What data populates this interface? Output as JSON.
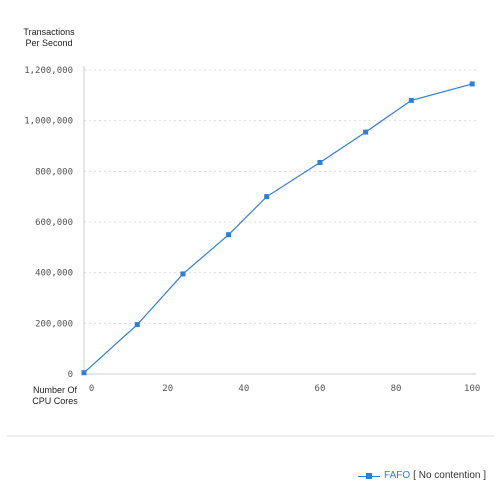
{
  "colors": {
    "series": "#2f7fd7",
    "grid": "#dddddd",
    "axis": "#cccccc",
    "tick_text": "#555555"
  },
  "chart_data": {
    "type": "line",
    "ylabel_line1": "Transactions",
    "ylabel_line2": "Per Second",
    "xlabel_line1": "Number Of",
    "xlabel_line2": "CPU Cores",
    "xlim": [
      -2,
      101
    ],
    "ylim": [
      0,
      1200000
    ],
    "xticks": [
      0,
      20,
      40,
      60,
      80,
      100
    ],
    "xtick_labels": [
      "0",
      "20",
      "40",
      "60",
      "80",
      "100"
    ],
    "yticks": [
      0,
      200000,
      400000,
      600000,
      800000,
      1000000,
      1200000
    ],
    "ytick_labels": [
      "0",
      "200,000",
      "400,000",
      "600,000",
      "800,000",
      "1,000,000",
      "1,200,000"
    ],
    "grid": true,
    "legend_position": "bottom-right",
    "series": [
      {
        "name": "FAFO",
        "note": "[ No contention ]",
        "x": [
          -2,
          12,
          24,
          36,
          46,
          60,
          72,
          84,
          100
        ],
        "y": [
          5000,
          195000,
          395000,
          550000,
          700000,
          835000,
          955000,
          1080000,
          1145000
        ]
      }
    ]
  }
}
